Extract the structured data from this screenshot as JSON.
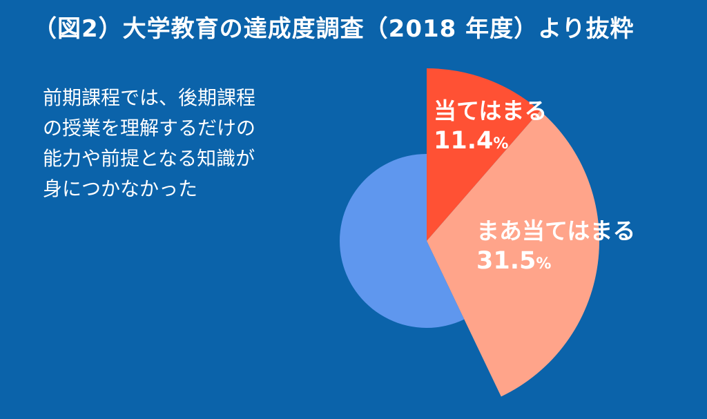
{
  "title": "（図2）大学教育の達成度調査（2018 年度）より抜粋",
  "question_lines": [
    "前期課程では、後期課程",
    "の授業を理解するだけの",
    "能力や前提となる知識が",
    "身につかなかった"
  ],
  "chart_data": {
    "type": "pie",
    "title": "（図2）大学教育の達成度調査（2018 年度）より抜粋",
    "start": "12 o'clock",
    "direction": "clockwise",
    "slices": [
      {
        "label": "当てはまる",
        "value": 11.4,
        "display": "11.4",
        "unit": "%",
        "color": "#ff5134",
        "exploded": true
      },
      {
        "label": "まあ当てはまる",
        "value": 31.5,
        "display": "31.5",
        "unit": "%",
        "color": "#ffa48a",
        "exploded": true
      },
      {
        "label": "",
        "value": 57.1,
        "display": "",
        "unit": "",
        "color": "#5f97ee",
        "exploded": false
      }
    ]
  }
}
